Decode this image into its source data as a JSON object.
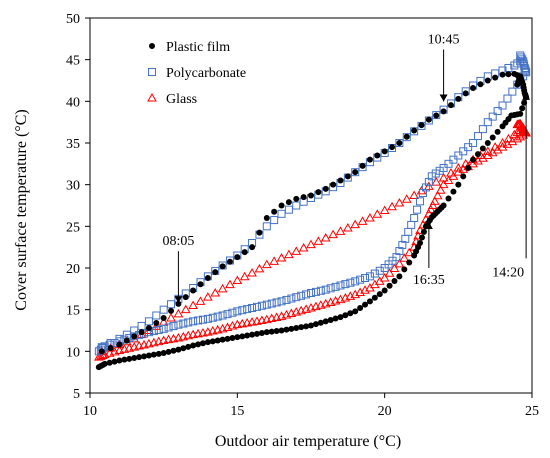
{
  "chart_data": {
    "type": "scatter",
    "xlabel": "Outdoor air temperature (°C)",
    "ylabel": "Cover surface temperature (°C)",
    "xlim": [
      10,
      25
    ],
    "ylim": [
      5,
      50
    ],
    "xticks": [
      10,
      15,
      20,
      25
    ],
    "yticks": [
      5,
      10,
      15,
      20,
      25,
      30,
      35,
      40,
      45,
      50
    ],
    "grid": false,
    "legend_position": "top-left",
    "series": [
      {
        "name": "Plastic film",
        "marker": "filled-circle",
        "color": "#000000",
        "morning": [
          [
            10.4,
            10
          ],
          [
            11,
            10.8
          ],
          [
            11.5,
            11.8
          ],
          [
            12,
            12.8
          ],
          [
            12.5,
            14
          ],
          [
            13,
            15.7
          ],
          [
            13.5,
            17.3
          ],
          [
            14,
            18.8
          ],
          [
            14.5,
            20.2
          ],
          [
            15,
            21.3
          ],
          [
            15.5,
            22.5
          ],
          [
            16,
            26
          ],
          [
            16.5,
            27.5
          ],
          [
            17,
            28.3
          ],
          [
            17.5,
            28.7
          ],
          [
            18,
            29.5
          ],
          [
            18.5,
            30.5
          ],
          [
            19,
            31.5
          ],
          [
            19.5,
            33
          ],
          [
            20,
            34
          ],
          [
            20.5,
            35
          ],
          [
            21,
            36.5
          ],
          [
            21.5,
            37.8
          ],
          [
            22,
            38.8
          ],
          [
            22.5,
            40.3
          ],
          [
            23,
            41.6
          ],
          [
            23.5,
            42.5
          ],
          [
            24,
            43.2
          ],
          [
            24.4,
            43.3
          ],
          [
            24.6,
            43
          ]
        ],
        "peak": [
          [
            24.5,
            42
          ],
          [
            24.6,
            43
          ],
          [
            24.7,
            42
          ],
          [
            24.75,
            41
          ],
          [
            24.8,
            40.5
          ]
        ],
        "afternoon": [
          [
            24.8,
            40.5
          ],
          [
            24.6,
            38.5
          ],
          [
            24.3,
            38.3
          ],
          [
            24,
            37
          ],
          [
            23.5,
            35
          ],
          [
            23,
            33
          ],
          [
            22.5,
            30
          ],
          [
            22,
            27.5
          ],
          [
            21.8,
            26.8
          ],
          [
            21.6,
            26.1
          ],
          [
            21.4,
            25
          ],
          [
            21.2,
            23
          ],
          [
            21,
            21.5
          ],
          [
            20.5,
            19
          ],
          [
            20,
            17.3
          ],
          [
            19.5,
            16
          ],
          [
            19,
            14.8
          ],
          [
            18.5,
            14.1
          ],
          [
            18,
            13.6
          ],
          [
            17.5,
            13.1
          ],
          [
            17,
            12.8
          ],
          [
            16.5,
            12.5
          ],
          [
            16,
            12.3
          ],
          [
            15.5,
            12
          ],
          [
            15,
            11.7
          ],
          [
            14.5,
            11.4
          ],
          [
            14,
            11.1
          ],
          [
            13.5,
            10.7
          ],
          [
            13,
            10.2
          ],
          [
            12.5,
            9.8
          ],
          [
            12,
            9.5
          ],
          [
            11.5,
            9.2
          ],
          [
            11,
            8.9
          ],
          [
            10.5,
            8.5
          ],
          [
            10.3,
            8.1
          ]
        ]
      },
      {
        "name": "Polycarbonate",
        "marker": "open-square",
        "color": "#4472C4",
        "morning": [
          [
            10.4,
            10.5
          ],
          [
            11,
            11.5
          ],
          [
            11.5,
            12.5
          ],
          [
            12,
            13.6
          ],
          [
            12.5,
            15
          ],
          [
            13,
            16.3
          ],
          [
            13.5,
            17.6
          ],
          [
            14,
            19
          ],
          [
            14.5,
            20.3
          ],
          [
            15,
            21.5
          ],
          [
            15.5,
            23
          ],
          [
            16,
            25
          ],
          [
            16.5,
            26.5
          ],
          [
            17,
            27.5
          ],
          [
            17.5,
            28.4
          ],
          [
            18,
            29.2
          ],
          [
            18.5,
            30.2
          ],
          [
            19,
            31.5
          ],
          [
            19.5,
            32.7
          ],
          [
            20,
            33.8
          ],
          [
            20.5,
            35
          ],
          [
            21,
            36.4
          ],
          [
            21.5,
            37.7
          ],
          [
            22,
            39
          ],
          [
            22.5,
            40.5
          ],
          [
            23,
            41.9
          ],
          [
            23.5,
            43
          ],
          [
            24,
            43.7
          ],
          [
            24.4,
            44.3
          ],
          [
            24.6,
            44.8
          ]
        ],
        "peak": [
          [
            24.6,
            45.5
          ],
          [
            24.7,
            44.8
          ],
          [
            24.75,
            44
          ],
          [
            24.8,
            43.5
          ]
        ],
        "afternoon": [
          [
            24.8,
            43.5
          ],
          [
            24.5,
            42
          ],
          [
            24,
            39.5
          ],
          [
            23.5,
            37.5
          ],
          [
            23,
            35
          ],
          [
            22.5,
            33.5
          ],
          [
            22,
            32
          ],
          [
            21.6,
            31
          ],
          [
            21.3,
            29
          ],
          [
            21,
            26
          ],
          [
            20.7,
            23.5
          ],
          [
            20.4,
            21.3
          ],
          [
            20,
            20
          ],
          [
            19.5,
            19
          ],
          [
            19,
            18.4
          ],
          [
            18.5,
            17.9
          ],
          [
            18,
            17.4
          ],
          [
            17.5,
            17
          ],
          [
            17,
            16.5
          ],
          [
            16.5,
            16
          ],
          [
            16,
            15.6
          ],
          [
            15.5,
            15.2
          ],
          [
            15,
            14.8
          ],
          [
            14.5,
            14.3
          ],
          [
            14,
            13.9
          ],
          [
            13.5,
            13.6
          ],
          [
            13,
            13.2
          ],
          [
            12.5,
            12.7
          ],
          [
            12,
            12.3
          ],
          [
            11.5,
            11.8
          ],
          [
            11,
            11.2
          ],
          [
            10.5,
            10.6
          ],
          [
            10.3,
            10
          ]
        ]
      },
      {
        "name": "Glass",
        "marker": "open-triangle",
        "color": "#FF0000",
        "morning": [
          [
            10.4,
            10
          ],
          [
            11,
            10.8
          ],
          [
            11.5,
            11.5
          ],
          [
            12,
            12.5
          ],
          [
            12.5,
            13.5
          ],
          [
            13,
            14.5
          ],
          [
            13.5,
            15.5
          ],
          [
            14,
            16.5
          ],
          [
            14.5,
            17.5
          ],
          [
            15,
            18.5
          ],
          [
            15.5,
            19.4
          ],
          [
            16,
            20.4
          ],
          [
            16.5,
            21.2
          ],
          [
            17,
            22
          ],
          [
            17.5,
            22.8
          ],
          [
            18,
            23.6
          ],
          [
            18.5,
            24.4
          ],
          [
            19,
            25.2
          ],
          [
            19.5,
            26
          ],
          [
            20,
            26.9
          ],
          [
            20.5,
            27.8
          ],
          [
            21,
            28.7
          ],
          [
            21.5,
            29.8
          ],
          [
            22,
            30.8
          ],
          [
            22.5,
            32
          ],
          [
            23,
            33
          ],
          [
            23.5,
            34
          ],
          [
            24,
            35
          ],
          [
            24.4,
            36
          ],
          [
            24.6,
            36.5
          ]
        ],
        "peak": [
          [
            24.5,
            37.2
          ],
          [
            24.6,
            37.3
          ],
          [
            24.7,
            36.8
          ],
          [
            24.75,
            36.5
          ],
          [
            24.8,
            36.2
          ]
        ],
        "afternoon": [
          [
            24.8,
            36.2
          ],
          [
            24.5,
            35.5
          ],
          [
            24,
            34.5
          ],
          [
            23.5,
            33.5
          ],
          [
            23,
            32.5
          ],
          [
            22.5,
            31.5
          ],
          [
            22,
            30
          ],
          [
            21.7,
            28
          ],
          [
            21.5,
            26.5
          ],
          [
            21.2,
            24.5
          ],
          [
            21,
            22.5
          ],
          [
            20.5,
            20.5
          ],
          [
            20,
            18.8
          ],
          [
            19.5,
            17.6
          ],
          [
            19,
            16.8
          ],
          [
            18.5,
            16.2
          ],
          [
            18,
            15.7
          ],
          [
            17.5,
            15.2
          ],
          [
            17,
            14.7
          ],
          [
            16.5,
            14.2
          ],
          [
            16,
            13.8
          ],
          [
            15.5,
            13.5
          ],
          [
            15,
            13.2
          ],
          [
            14.5,
            12.7
          ],
          [
            14,
            12.3
          ],
          [
            13.5,
            12
          ],
          [
            13,
            11.6
          ],
          [
            12.5,
            11.3
          ],
          [
            12,
            10.9
          ],
          [
            11.5,
            10.5
          ],
          [
            11,
            10.1
          ],
          [
            10.5,
            9.6
          ],
          [
            10.3,
            9.3
          ]
        ]
      }
    ],
    "annotations": [
      {
        "text": "08:05",
        "point": [
          13,
          15.3
        ],
        "label_pos": "above"
      },
      {
        "text": "10:45",
        "point": [
          22,
          39.5
        ],
        "label_pos": "above"
      },
      {
        "text": "16:35",
        "point": [
          21.5,
          26
        ],
        "label_pos": "below"
      },
      {
        "text": "14:20",
        "point": [
          24.8,
          41.5
        ],
        "label_pos": "below"
      }
    ]
  }
}
